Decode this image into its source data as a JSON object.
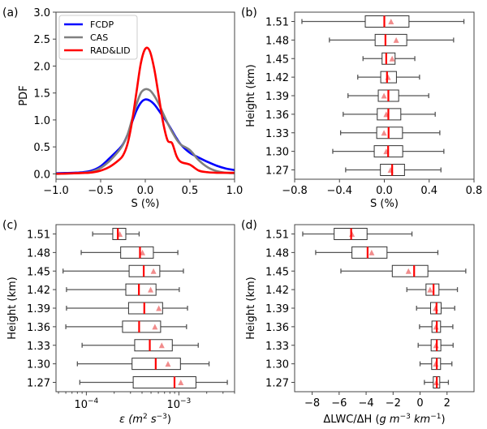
{
  "chart_data": [
    {
      "id": "a",
      "panel_label": "(a)",
      "type": "line",
      "title": "",
      "xlabel": "S (%)",
      "ylabel": "PDF",
      "xlim": [
        -1.0,
        1.0
      ],
      "ylim": [
        -0.1,
        3.0
      ],
      "xticks": [
        -1.0,
        -0.5,
        0.0,
        0.5,
        1.0
      ],
      "xtick_labels": [
        "−1.0",
        "−0.5",
        "0.0",
        "0.5",
        "1.0"
      ],
      "yticks": [
        0.0,
        0.5,
        1.0,
        1.5,
        2.0,
        2.5,
        3.0
      ],
      "ytick_labels": [
        "0.0",
        "0.5",
        "1.0",
        "1.5",
        "2.0",
        "2.5",
        "3.0"
      ],
      "grid": false,
      "legend": "top-left",
      "x": [
        -1.0,
        -0.9,
        -0.8,
        -0.7,
        -0.6,
        -0.5,
        -0.4,
        -0.3,
        -0.25,
        -0.2,
        -0.15,
        -0.1,
        -0.05,
        0.0,
        0.05,
        0.1,
        0.15,
        0.2,
        0.25,
        0.3,
        0.35,
        0.4,
        0.5,
        0.6,
        0.7,
        0.8,
        0.9,
        1.0
      ],
      "series": [
        {
          "name": "FCDP",
          "color": "#0000ff",
          "values": [
            0.01,
            0.015,
            0.02,
            0.03,
            0.06,
            0.14,
            0.29,
            0.45,
            0.55,
            0.72,
            0.95,
            1.17,
            1.32,
            1.38,
            1.36,
            1.29,
            1.18,
            1.06,
            0.94,
            0.8,
            0.66,
            0.54,
            0.39,
            0.3,
            0.22,
            0.15,
            0.1,
            0.07
          ]
        },
        {
          "name": "CAS",
          "color": "#808080",
          "values": [
            0.0,
            0.005,
            0.01,
            0.02,
            0.04,
            0.11,
            0.24,
            0.42,
            0.54,
            0.72,
            1.0,
            1.28,
            1.5,
            1.57,
            1.55,
            1.45,
            1.3,
            1.12,
            0.94,
            0.78,
            0.64,
            0.54,
            0.44,
            0.25,
            0.12,
            0.05,
            0.02,
            0.01
          ]
        },
        {
          "name": "RAD&LID",
          "color": "#ff0000",
          "values": [
            0.0,
            0.005,
            0.01,
            0.015,
            0.025,
            0.06,
            0.13,
            0.25,
            0.34,
            0.55,
            0.95,
            1.5,
            2.05,
            2.32,
            2.28,
            1.95,
            1.45,
            0.95,
            0.62,
            0.57,
            0.33,
            0.22,
            0.17,
            0.06,
            0.03,
            0.02,
            0.02,
            0.02
          ]
        }
      ]
    },
    {
      "id": "b",
      "panel_label": "(b)",
      "type": "boxplot",
      "xlabel": "S (%)",
      "ylabel": "Height (km)",
      "xscale": "linear",
      "xlim": [
        -0.8,
        0.8
      ],
      "xticks": [
        -0.8,
        -0.4,
        0.0,
        0.4,
        0.8
      ],
      "xtick_labels": [
        "−0.8",
        "−0.4",
        "0.0",
        "0.4",
        "0.8"
      ],
      "categories": [
        "1.51",
        "1.48",
        "1.45",
        "1.42",
        "1.39",
        "1.36",
        "1.33",
        "1.30",
        "1.27"
      ],
      "boxes": [
        {
          "whislo": -0.735,
          "q1": -0.17,
          "med": 0.0,
          "mean": 0.06,
          "q3": 0.22,
          "whishi": 0.71
        },
        {
          "whislo": -0.49,
          "q1": -0.082,
          "med": 0.01,
          "mean": 0.106,
          "q3": 0.2,
          "whishi": 0.618
        },
        {
          "whislo": -0.19,
          "q1": -0.02,
          "med": 0.017,
          "mean": 0.07,
          "q3": 0.096,
          "whishi": 0.272
        },
        {
          "whislo": -0.237,
          "q1": -0.032,
          "med": 0.024,
          "mean": 0.033,
          "q3": 0.108,
          "whishi": 0.314
        },
        {
          "whislo": -0.324,
          "q1": -0.054,
          "med": 0.036,
          "mean": -0.003,
          "q3": 0.128,
          "whishi": 0.396
        },
        {
          "whislo": -0.367,
          "q1": -0.063,
          "med": 0.036,
          "mean": 0.017,
          "q3": 0.147,
          "whishi": 0.454
        },
        {
          "whislo": -0.39,
          "q1": -0.068,
          "med": 0.038,
          "mean": -0.003,
          "q3": 0.162,
          "whishi": 0.495
        },
        {
          "whislo": -0.46,
          "q1": -0.09,
          "med": 0.034,
          "mean": 0.017,
          "q3": 0.164,
          "whishi": 0.531
        },
        {
          "whislo": -0.345,
          "q1": -0.035,
          "med": 0.07,
          "mean": 0.055,
          "q3": 0.18,
          "whishi": 0.505
        }
      ]
    },
    {
      "id": "c",
      "panel_label": "(c)",
      "type": "boxplot",
      "xlabel_parts": [
        "ε (",
        "m",
        "2",
        " s",
        "−3",
        ")"
      ],
      "ylabel": "Height (km)",
      "xscale": "log",
      "xlim": [
        4.7e-05,
        0.004
      ],
      "xticks": [
        0.0001,
        0.001
      ],
      "xtick_labels": [
        [
          "10",
          "−4"
        ],
        [
          "10",
          "−3"
        ]
      ],
      "categories": [
        "1.51",
        "1.48",
        "1.45",
        "1.42",
        "1.39",
        "1.36",
        "1.33",
        "1.30",
        "1.27"
      ],
      "boxes": [
        {
          "whislo": 0.000117,
          "q1": 0.000193,
          "med": 0.000219,
          "mean": 0.00023,
          "q3": 0.000267,
          "whishi": 0.000372
        },
        {
          "whislo": 8.8e-05,
          "q1": 0.000235,
          "med": 0.00038,
          "mean": 0.000404,
          "q3": 0.00053,
          "whishi": 0.000975
        },
        {
          "whislo": 5.6e-05,
          "q1": 0.00029,
          "med": 0.000417,
          "mean": 0.000532,
          "q3": 0.000622,
          "whishi": 0.00112
        },
        {
          "whislo": 6.1e-05,
          "q1": 0.000267,
          "med": 0.00037,
          "mean": 0.000495,
          "q3": 0.000566,
          "whishi": 0.00101
        },
        {
          "whislo": 6.1e-05,
          "q1": 0.000286,
          "med": 0.000423,
          "mean": 0.000607,
          "q3": 0.000667,
          "whishi": 0.00124
        },
        {
          "whislo": 6e-05,
          "q1": 0.000246,
          "med": 0.000372,
          "mean": 0.000551,
          "q3": 0.000635,
          "whishi": 0.00121
        },
        {
          "whislo": 9e-05,
          "q1": 0.000333,
          "med": 0.000485,
          "mean": 0.000653,
          "q3": 0.000849,
          "whishi": 0.00162
        },
        {
          "whislo": 8e-05,
          "q1": 0.000312,
          "med": 0.000562,
          "mean": 0.000763,
          "q3": 0.00104,
          "whishi": 0.00212
        },
        {
          "whislo": 8.5e-05,
          "q1": 0.000321,
          "med": 0.000897,
          "mean": 0.00105,
          "q3": 0.00153,
          "whishi": 0.00334
        }
      ]
    },
    {
      "id": "d",
      "panel_label": "(d)",
      "type": "boxplot",
      "xlabel_parts": [
        "ΔLWC/ΔH (",
        "g m",
        "−3",
        " km",
        "−1",
        ")"
      ],
      "ylabel": "Height (km)",
      "xscale": "linear",
      "xlim": [
        -9.3,
        4.0
      ],
      "xticks": [
        -8,
        -6,
        -4,
        -2,
        0,
        2
      ],
      "xtick_labels": [
        "−8",
        "−6",
        "−4",
        "−2",
        "0",
        "2"
      ],
      "categories": [
        "1.51",
        "1.48",
        "1.45",
        "1.42",
        "1.39",
        "1.36",
        "1.33",
        "1.30",
        "1.27"
      ],
      "boxes": [
        {
          "whislo": -8.7,
          "q1": -6.37,
          "med": -5.11,
          "mean": -5.05,
          "q3": -3.93,
          "whishi": -0.6
        },
        {
          "whislo": -7.74,
          "q1": -5.05,
          "med": -3.89,
          "mean": -3.59,
          "q3": -2.45,
          "whishi": 1.32
        },
        {
          "whislo": -5.87,
          "q1": -2.06,
          "med": -0.44,
          "mean": -0.86,
          "q3": 0.58,
          "whishi": 3.39
        },
        {
          "whislo": -0.98,
          "q1": 0.44,
          "med": 1.0,
          "mean": 0.74,
          "q3": 1.4,
          "whishi": 2.77
        },
        {
          "whislo": -0.26,
          "q1": 0.78,
          "med": 1.22,
          "mean": 1.15,
          "q3": 1.56,
          "whishi": 2.57
        },
        {
          "whislo": -0.04,
          "q1": 0.88,
          "med": 1.24,
          "mean": 1.18,
          "q3": 1.52,
          "whishi": 2.43
        },
        {
          "whislo": -0.14,
          "q1": 0.82,
          "med": 1.24,
          "mean": 1.18,
          "q3": 1.54,
          "whishi": 2.45
        },
        {
          "whislo": 0.0,
          "q1": 0.86,
          "med": 1.24,
          "mean": 1.16,
          "q3": 1.52,
          "whishi": 2.36
        },
        {
          "whislo": 0.32,
          "q1": 0.98,
          "med": 1.24,
          "mean": 1.2,
          "q3": 1.46,
          "whishi": 2.1
        }
      ]
    }
  ],
  "style": {
    "median_color": "#ff0000",
    "mean_color": "#f08080",
    "box_color": "#333333",
    "whisker_color": "#555555"
  }
}
